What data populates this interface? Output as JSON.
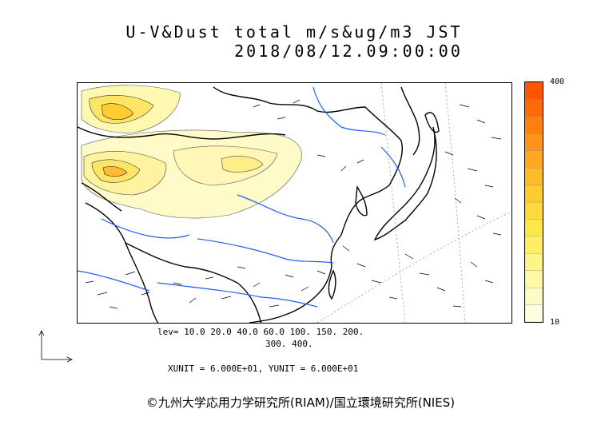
{
  "title": {
    "line1": "U-V&Dust total m/s&ug/m3 JST",
    "line2": "2018/08/12.09:00:00"
  },
  "colorbar": {
    "max_label": "400",
    "min_label": "10",
    "colors": [
      "#fffde0",
      "#fffbc4",
      "#fff8a6",
      "#fff488",
      "#ffee66",
      "#ffe64a",
      "#ffda3a",
      "#ffcc30",
      "#ffbb28",
      "#ffa820",
      "#ff9418",
      "#ff7f10",
      "#ff6a08",
      "#ff5500"
    ]
  },
  "levels": {
    "line1": "lev= 10.0 20.0 40.0 60.0 100. 150. 200.",
    "line2": "300. 400."
  },
  "units": "XUNIT = 6.000E+01, YUNIT = 6.000E+01",
  "copyright": "©九州大学応用力学研究所(RIAM)/国立環境研究所(NIES)"
}
